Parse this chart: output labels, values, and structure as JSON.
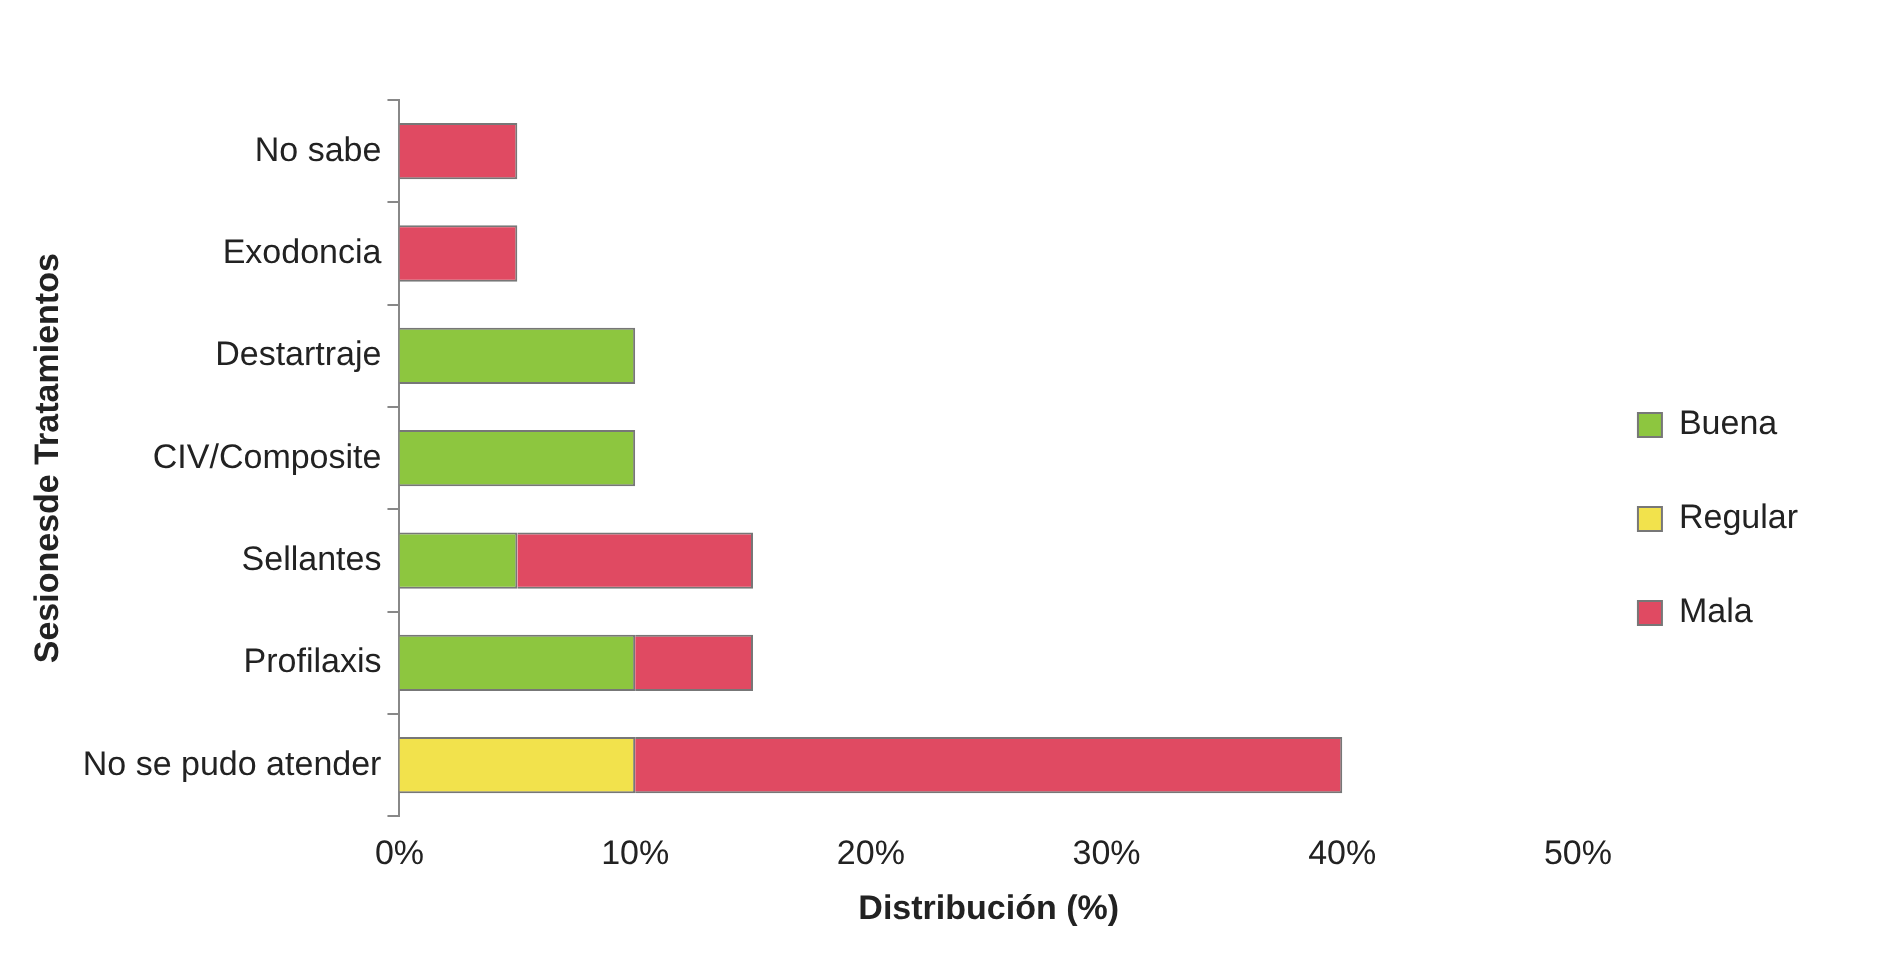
{
  "chart_data": {
    "type": "bar",
    "orientation": "horizontal",
    "stacked": true,
    "xlabel": "Distribución (%)",
    "ylabel": "Sesionesde Tratamientos",
    "categories": [
      "No sabe",
      "Exodoncia",
      "Destartraje",
      "CIV/Composite",
      "Sellantes",
      "Profilaxis",
      "No se pudo atender"
    ],
    "series": [
      {
        "name": "Buena",
        "color": "#8dc63f",
        "values": [
          0,
          0,
          10,
          10,
          5,
          10,
          0
        ]
      },
      {
        "name": "Regular",
        "color": "#f2e24c",
        "values": [
          0,
          0,
          0,
          0,
          0,
          0,
          10
        ]
      },
      {
        "name": "Mala",
        "color": "#e04a62",
        "values": [
          5,
          5,
          0,
          0,
          10,
          5,
          30
        ]
      }
    ],
    "xlim": [
      0,
      50
    ],
    "xticks": [
      {
        "value": 0,
        "label": "0%"
      },
      {
        "value": 10,
        "label": "10%"
      },
      {
        "value": 20,
        "label": "20%"
      },
      {
        "value": 30,
        "label": "30%"
      },
      {
        "value": 40,
        "label": "40%"
      },
      {
        "value": 50,
        "label": "50%"
      }
    ],
    "grid": false,
    "legend": "right"
  }
}
